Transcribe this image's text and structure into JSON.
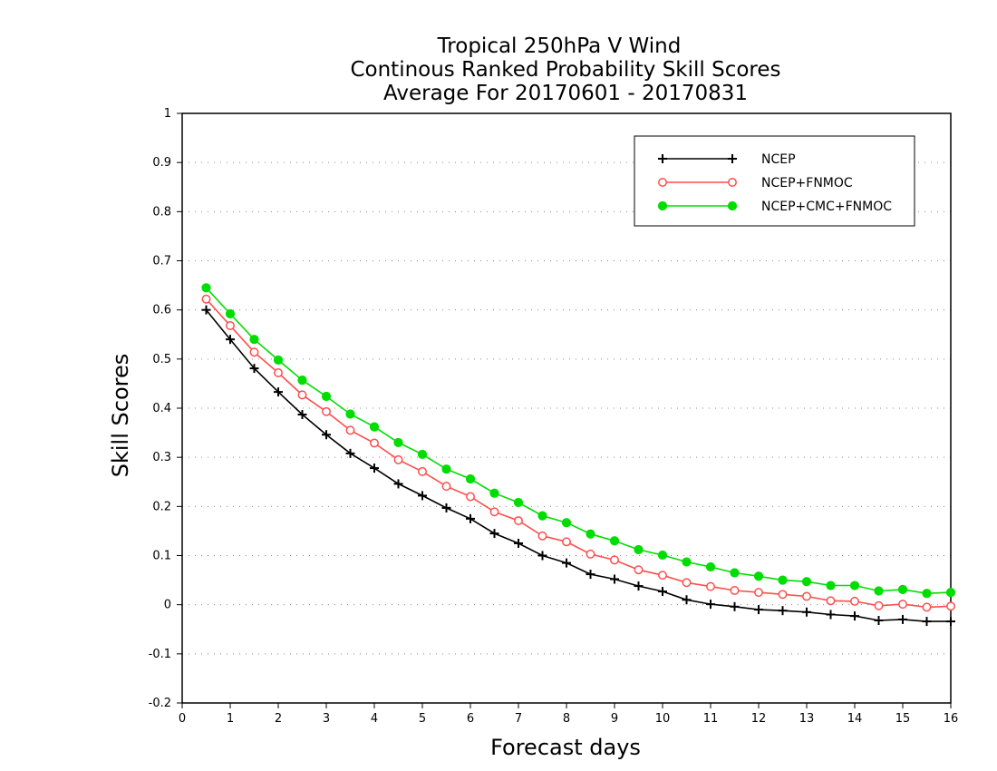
{
  "chart_data": {
    "type": "line",
    "title": [
      "Tropical 250hPa V Wind",
      "Continous Ranked Probability Skill Scores",
      "Average For 20170601 - 20170831"
    ],
    "xlabel": "Forecast days",
    "ylabel": "Skill Scores",
    "xlim": [
      0,
      16
    ],
    "ylim": [
      -0.2,
      1
    ],
    "x_ticks": [
      "0",
      "1",
      "2",
      "3",
      "4",
      "5",
      "6",
      "7",
      "8",
      "9",
      "10",
      "11",
      "12",
      "13",
      "14",
      "15",
      "16"
    ],
    "y_ticks": [
      "-0.2",
      "-0.1",
      "0",
      "0.1",
      "0.2",
      "0.3",
      "0.4",
      "0.5",
      "0.6",
      "0.7",
      "0.8",
      "0.9",
      "1"
    ],
    "grid": "horizontal dotted",
    "legend_position": "top-right",
    "x": [
      0.5,
      1,
      1.5,
      2,
      2.5,
      3,
      3.5,
      4,
      4.5,
      5,
      5.5,
      6,
      6.5,
      7,
      7.5,
      8,
      8.5,
      9,
      9.5,
      10,
      10.5,
      11,
      11.5,
      12,
      12.5,
      13,
      13.5,
      14,
      14.5,
      15,
      15.5,
      16
    ],
    "series": [
      {
        "name": "NCEP",
        "color": "#000000",
        "marker": "plus",
        "values": [
          0.6,
          0.54,
          0.481,
          0.433,
          0.387,
          0.346,
          0.308,
          0.278,
          0.246,
          0.222,
          0.197,
          0.175,
          0.145,
          0.125,
          0.1,
          0.085,
          0.062,
          0.052,
          0.038,
          0.027,
          0.01,
          0.001,
          -0.004,
          -0.01,
          -0.012,
          -0.015,
          -0.02,
          -0.023,
          -0.032,
          -0.03,
          -0.034,
          -0.034
        ]
      },
      {
        "name": "NCEP+FNMOC",
        "color": "#ff4d4d",
        "marker": "open-circle",
        "values": [
          0.622,
          0.568,
          0.514,
          0.472,
          0.427,
          0.393,
          0.355,
          0.329,
          0.295,
          0.271,
          0.241,
          0.22,
          0.189,
          0.171,
          0.14,
          0.128,
          0.103,
          0.091,
          0.071,
          0.06,
          0.045,
          0.037,
          0.029,
          0.025,
          0.021,
          0.017,
          0.008,
          0.007,
          -0.002,
          0.001,
          -0.005,
          -0.003
        ]
      },
      {
        "name": "NCEP+CMC+FNMOC",
        "color": "#00dd00",
        "marker": "filled-circle",
        "values": [
          0.645,
          0.592,
          0.54,
          0.498,
          0.457,
          0.424,
          0.388,
          0.362,
          0.33,
          0.306,
          0.276,
          0.256,
          0.227,
          0.208,
          0.181,
          0.167,
          0.144,
          0.13,
          0.112,
          0.101,
          0.087,
          0.077,
          0.065,
          0.058,
          0.05,
          0.047,
          0.039,
          0.039,
          0.028,
          0.031,
          0.023,
          0.025
        ]
      }
    ]
  }
}
